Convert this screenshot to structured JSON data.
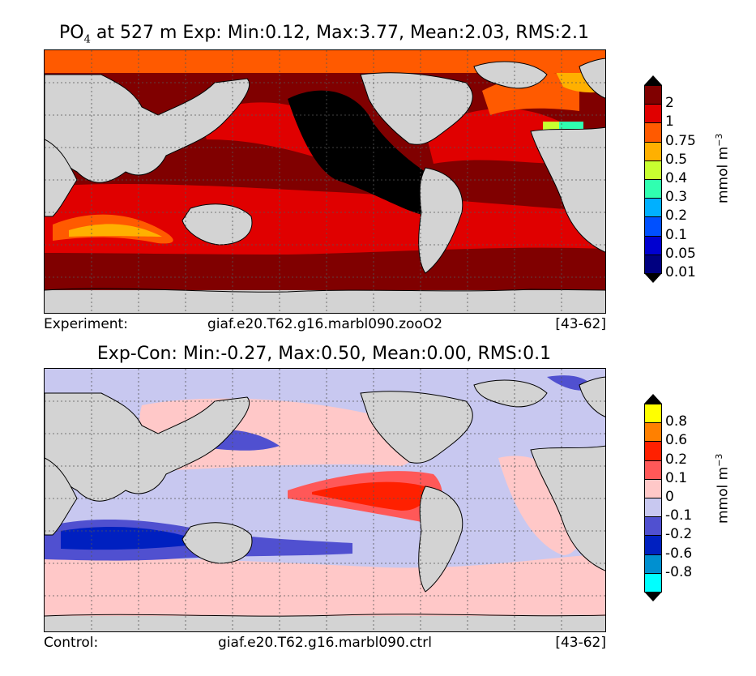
{
  "top": {
    "title_var": "PO",
    "title_sub": "4",
    "title_rest": " at 527 m Exp: Min:0.12, Max:3.77, Mean:2.03, RMS:2.1",
    "footer_left": "Experiment:",
    "footer_mid": "giaf.e20.T62.g16.marbl090.zooO2",
    "footer_right": "[43-62]",
    "unit_base": "mmol m",
    "unit_exp": "−3",
    "levels": [
      "2",
      "1",
      "0.75",
      "0.5",
      "0.4",
      "0.3",
      "0.2",
      "0.1",
      "0.05",
      "0.01"
    ],
    "colors": [
      "#800000",
      "#e00000",
      "#ff5a00",
      "#ffb000",
      "#c8ff30",
      "#30ffb0",
      "#00b0ff",
      "#0050ff",
      "#0000d0",
      "#000080"
    ],
    "over_color": "#000000",
    "under_color": "#000000"
  },
  "bottom": {
    "title": "Exp-Con: Min:-0.27, Max:0.50, Mean:0.00, RMS:0.1",
    "footer_left": "Control:",
    "footer_mid": "giaf.e20.T62.g16.marbl090.ctrl",
    "footer_right": "[43-62]",
    "unit_base": "mmol m",
    "unit_exp": "−3",
    "levels": [
      "0.8",
      "0.6",
      "0.2",
      "0.1",
      "0",
      "-0.1",
      "-0.2",
      "-0.6",
      "-0.8"
    ],
    "colors": [
      "#ffff00",
      "#ff8000",
      "#ff2000",
      "#ff5858",
      "#ffc8c8",
      "#c8c8f0",
      "#5050d0",
      "#0020c0",
      "#0090d0",
      "#00ffff"
    ],
    "over_color": "#000000",
    "under_color": "#000000"
  },
  "land_color": "#d3d3d3"
}
